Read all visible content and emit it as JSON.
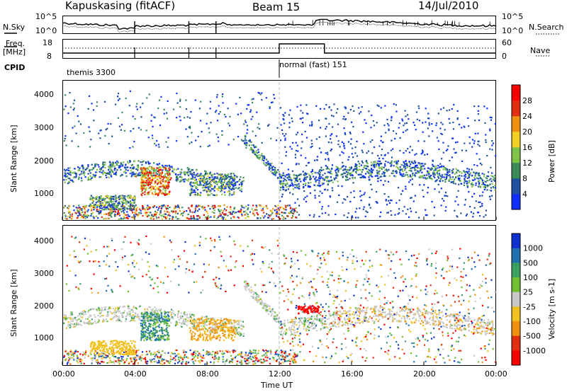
{
  "header": {
    "station": "Kapuskasing (fitACF)",
    "beam": "Beam 15",
    "date": "14/Jul/2010"
  },
  "top_panels": {
    "nsky_label": "N.Sky",
    "nsky_ticks": [
      "10^5",
      "10^0"
    ],
    "nsearch_label": "N.Search",
    "nsearch_ticks": [
      "10^5",
      "10^0"
    ],
    "freq_label": "Freq.",
    "freq_unit": "[MHz]",
    "freq_ticks": [
      "18",
      "8"
    ],
    "nave_label": "Nave",
    "nave_ticks": [
      "60",
      "0"
    ],
    "cpid_label": "CPID",
    "cpid_segments": [
      "themis 3300",
      "normal (fast) 151"
    ]
  },
  "chart_data": [
    {
      "type": "heatmap",
      "name": "power",
      "ylabel": "Slant Range [km]",
      "yticks": [
        "1000",
        "2000",
        "3000",
        "4000"
      ],
      "ylim": [
        200,
        4600
      ],
      "xlim": [
        0,
        24
      ],
      "colorbar_label": "Power [dB]",
      "colorbar_ticks": [
        "4",
        "8",
        "12",
        "16",
        "20",
        "24",
        "28"
      ],
      "colors": [
        "#1030ff",
        "#2050a0",
        "#3a8a5a",
        "#7fc24a",
        "#f0d020",
        "#f09010",
        "#e03010",
        "#ff0000"
      ]
    },
    {
      "type": "heatmap",
      "name": "velocity",
      "ylabel": "Slant Range [km]",
      "yticks": [
        "1000",
        "2000",
        "3000",
        "4000"
      ],
      "ylim": [
        200,
        4600
      ],
      "xlim": [
        0,
        24
      ],
      "colorbar_label": "Velocity [m s-1]",
      "colorbar_ticks": [
        "1000",
        "500",
        "100",
        "25",
        "-25",
        "-100",
        "-500",
        "-1000"
      ],
      "colors": [
        "#1030d0",
        "#2070b0",
        "#3aa060",
        "#70c030",
        "#c8c8c8",
        "#f0c020",
        "#f09010",
        "#e03010",
        "#ff0000"
      ]
    }
  ],
  "xaxis": {
    "ticks": [
      "00:00",
      "04:00",
      "08:00",
      "12:00",
      "16:00",
      "20:00",
      "00:00"
    ],
    "label": "Time UT"
  }
}
